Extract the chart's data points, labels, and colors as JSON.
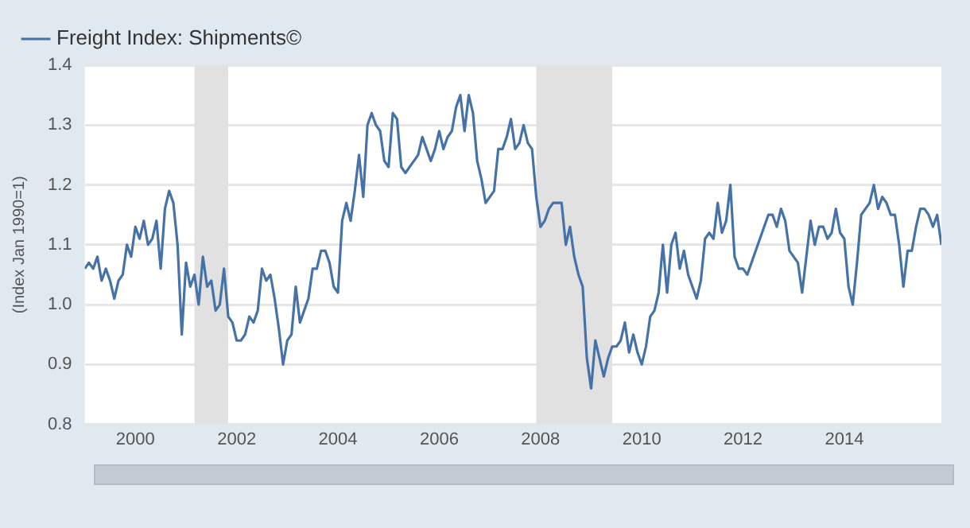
{
  "chart_data": {
    "type": "line",
    "ylabel": "(Index Jan 1990=1)",
    "xlim": [
      "1999-01",
      "2015-12"
    ],
    "xticks": [
      "2000",
      "2002",
      "2004",
      "2006",
      "2008",
      "2010",
      "2012",
      "2014"
    ],
    "ylim": [
      0.8,
      1.4
    ],
    "yticks": [
      0.8,
      0.9,
      {
        "value": 1,
        "label": "1.0"
      },
      1.1,
      1.2,
      1.3,
      1.4
    ],
    "grid": "y",
    "legend": "top left",
    "marker": "none",
    "line_style": "solid",
    "bands": [
      {
        "axis": "x",
        "from": "2001-03",
        "to": "2001-11",
        "color": "#e1e1e1"
      },
      {
        "axis": "x",
        "from": "2007-12",
        "to": "2009-06",
        "color": "#e1e1e1"
      }
    ],
    "series": [
      {
        "name": "Freight Index: Shipments©",
        "color": "#4572a7",
        "x": [
          "1999-01",
          "1999-02",
          "1999-03",
          "1999-04",
          "1999-05",
          "1999-06",
          "1999-07",
          "1999-08",
          "1999-09",
          "1999-10",
          "1999-11",
          "1999-12",
          "2000-01",
          "2000-02",
          "2000-03",
          "2000-04",
          "2000-05",
          "2000-06",
          "2000-07",
          "2000-08",
          "2000-09",
          "2000-10",
          "2000-11",
          "2000-12",
          "2001-01",
          "2001-02",
          "2001-03",
          "2001-04",
          "2001-05",
          "2001-06",
          "2001-07",
          "2001-08",
          "2001-09",
          "2001-10",
          "2001-11",
          "2001-12",
          "2002-01",
          "2002-02",
          "2002-03",
          "2002-04",
          "2002-05",
          "2002-06",
          "2002-07",
          "2002-08",
          "2002-09",
          "2002-10",
          "2002-11",
          "2002-12",
          "2003-01",
          "2003-02",
          "2003-03",
          "2003-04",
          "2003-05",
          "2003-06",
          "2003-07",
          "2003-08",
          "2003-09",
          "2003-10",
          "2003-11",
          "2003-12",
          "2004-01",
          "2004-02",
          "2004-03",
          "2004-04",
          "2004-05",
          "2004-06",
          "2004-07",
          "2004-08",
          "2004-09",
          "2004-10",
          "2004-11",
          "2004-12",
          "2005-01",
          "2005-02",
          "2005-03",
          "2005-04",
          "2005-05",
          "2005-06",
          "2005-07",
          "2005-08",
          "2005-09",
          "2005-10",
          "2005-11",
          "2005-12",
          "2006-01",
          "2006-02",
          "2006-03",
          "2006-04",
          "2006-05",
          "2006-06",
          "2006-07",
          "2006-08",
          "2006-09",
          "2006-10",
          "2006-11",
          "2006-12",
          "2007-01",
          "2007-02",
          "2007-03",
          "2007-04",
          "2007-05",
          "2007-06",
          "2007-07",
          "2007-08",
          "2007-09",
          "2007-10",
          "2007-11",
          "2007-12",
          "2008-01",
          "2008-02",
          "2008-03",
          "2008-04",
          "2008-05",
          "2008-06",
          "2008-07",
          "2008-08",
          "2008-09",
          "2008-10",
          "2008-11",
          "2008-12",
          "2009-01",
          "2009-02",
          "2009-03",
          "2009-04",
          "2009-05",
          "2009-06",
          "2009-07",
          "2009-08",
          "2009-09",
          "2009-10",
          "2009-11",
          "2009-12",
          "2010-01",
          "2010-02",
          "2010-03",
          "2010-04",
          "2010-05",
          "2010-06",
          "2010-07",
          "2010-08",
          "2010-09",
          "2010-10",
          "2010-11",
          "2010-12",
          "2011-02",
          "2011-03",
          "2011-04",
          "2011-05",
          "2011-06",
          "2011-07",
          "2011-08",
          "2011-09",
          "2011-10",
          "2011-11",
          "2011-12",
          "2012-01",
          "2012-02",
          "2012-03",
          "2012-04",
          "2012-05",
          "2012-06",
          "2012-07",
          "2012-08",
          "2012-09",
          "2012-10",
          "2012-11",
          "2012-12",
          "2013-02",
          "2013-03",
          "2013-04",
          "2013-05",
          "2013-06",
          "2013-07",
          "2013-08",
          "2013-09",
          "2013-10",
          "2013-11",
          "2013-12",
          "2014-01",
          "2014-02",
          "2014-03",
          "2014-04",
          "2014-05",
          "2014-06",
          "2014-07",
          "2014-08",
          "2014-09",
          "2014-10",
          "2014-11",
          "2014-12",
          "2015-01",
          "2015-02",
          "2015-03",
          "2015-04",
          "2015-05",
          "2015-06",
          "2015-07",
          "2015-08",
          "2015-09",
          "2015-10",
          "2015-11",
          "2015-12"
        ],
        "values": [
          1.06,
          1.07,
          1.06,
          1.08,
          1.04,
          1.06,
          1.04,
          1.01,
          1.04,
          1.05,
          1.1,
          1.08,
          1.13,
          1.11,
          1.14,
          1.1,
          1.11,
          1.14,
          1.06,
          1.16,
          1.19,
          1.17,
          1.1,
          0.95,
          1.07,
          1.03,
          1.05,
          1.0,
          1.08,
          1.03,
          1.04,
          0.99,
          1.0,
          1.06,
          0.98,
          0.97,
          0.94,
          0.94,
          0.95,
          0.98,
          0.97,
          0.99,
          1.06,
          1.04,
          1.05,
          1.01,
          0.96,
          0.9,
          0.94,
          0.95,
          1.03,
          0.97,
          0.99,
          1.01,
          1.06,
          1.06,
          1.09,
          1.09,
          1.07,
          1.03,
          1.02,
          1.14,
          1.17,
          1.14,
          1.19,
          1.25,
          1.18,
          1.3,
          1.32,
          1.3,
          1.29,
          1.24,
          1.23,
          1.32,
          1.31,
          1.23,
          1.22,
          1.23,
          1.24,
          1.25,
          1.28,
          1.26,
          1.24,
          1.26,
          1.29,
          1.26,
          1.28,
          1.29,
          1.33,
          1.35,
          1.29,
          1.35,
          1.32,
          1.24,
          1.21,
          1.17,
          1.18,
          1.19,
          1.26,
          1.26,
          1.28,
          1.31,
          1.26,
          1.27,
          1.3,
          1.27,
          1.26,
          1.18,
          1.13,
          1.14,
          1.16,
          1.17,
          1.17,
          1.17,
          1.1,
          1.13,
          1.08,
          1.05,
          1.03,
          0.91,
          0.86,
          0.94,
          0.91,
          0.88,
          0.91,
          0.93,
          0.93,
          0.94,
          0.97,
          0.92,
          0.95,
          0.92,
          0.9,
          0.93,
          0.98,
          0.99,
          1.02,
          1.1,
          1.02,
          1.1,
          1.12,
          1.06,
          1.09,
          1.05,
          1.01,
          1.04,
          1.11,
          1.12,
          1.11,
          1.17,
          1.12,
          1.14,
          1.2,
          1.08,
          1.06,
          1.06,
          1.05,
          1.07,
          1.09,
          1.11,
          1.13,
          1.15,
          1.15,
          1.13,
          1.16,
          1.14,
          1.09,
          1.07,
          1.02,
          1.08,
          1.14,
          1.1,
          1.13,
          1.13,
          1.11,
          1.12,
          1.16,
          1.12,
          1.11,
          1.03,
          1.0,
          1.07,
          1.15,
          1.16,
          1.17,
          1.2,
          1.16,
          1.18,
          1.17,
          1.15,
          1.15,
          1.1,
          1.03,
          1.09,
          1.09,
          1.13,
          1.16,
          1.16,
          1.15,
          1.13,
          1.15,
          1.1
        ]
      }
    ]
  }
}
